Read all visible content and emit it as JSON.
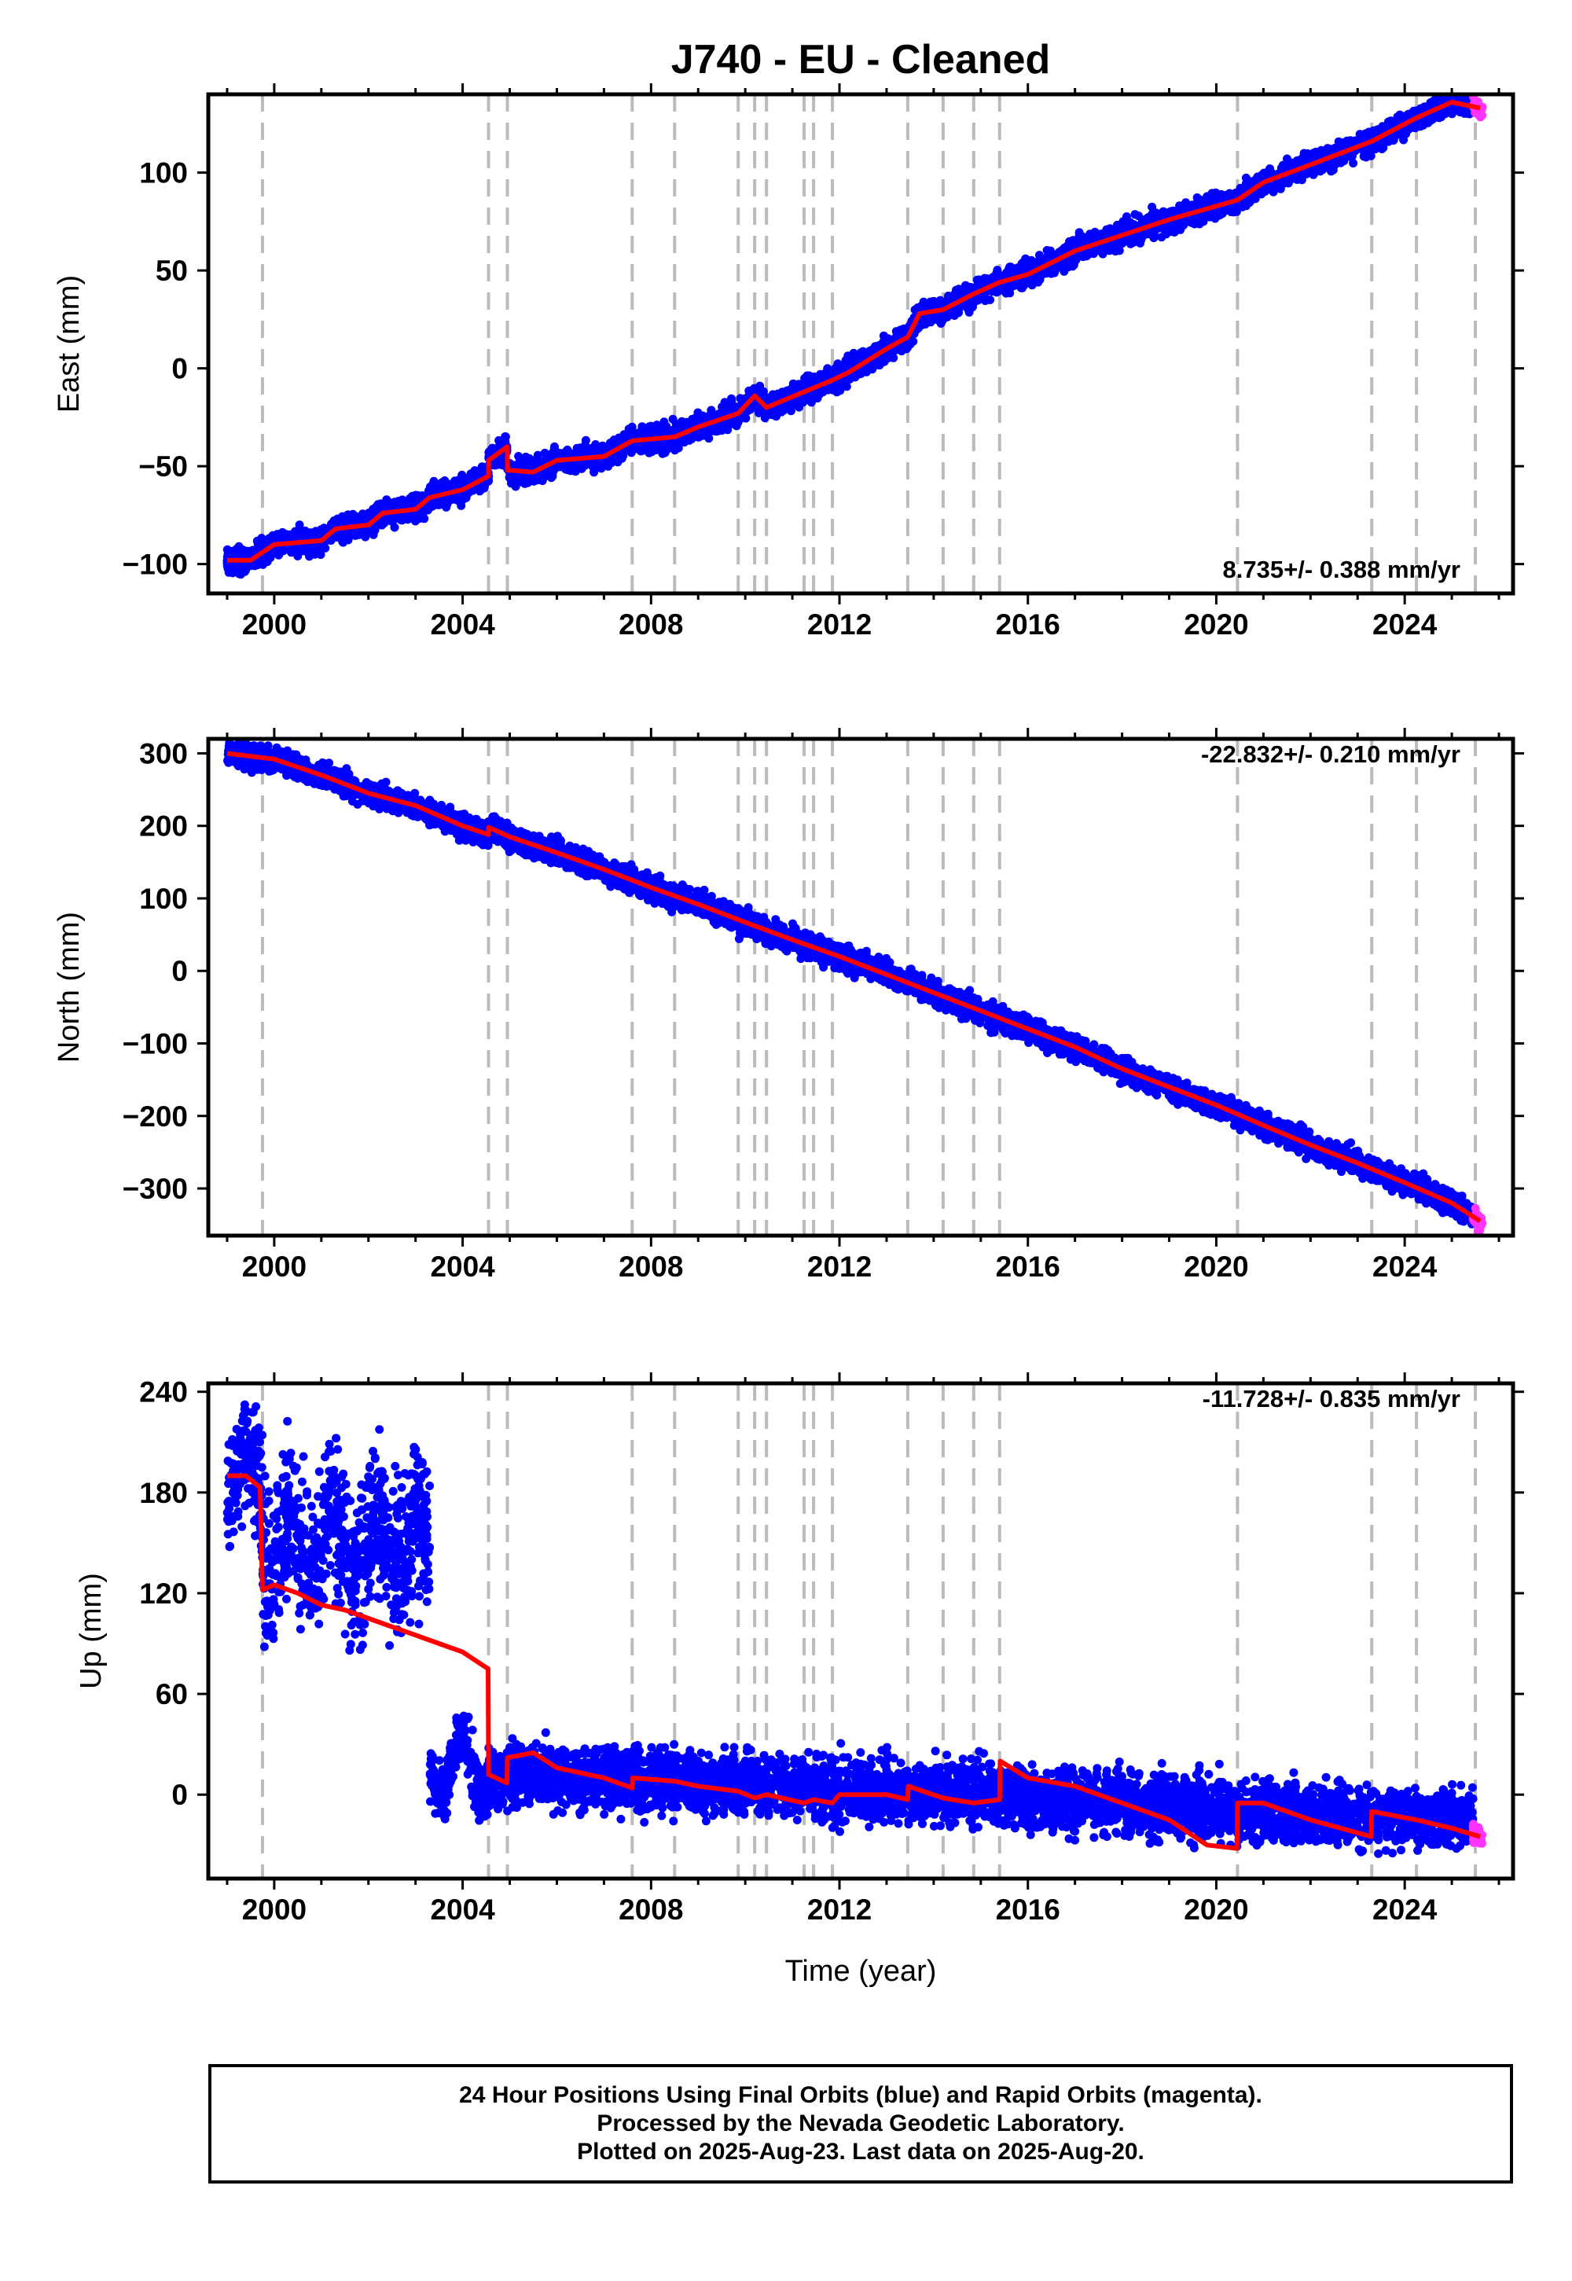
{
  "title": "J740  - EU - Cleaned",
  "xlabel": "Time (year)",
  "x_ticks": [
    "2000",
    "2004",
    "2008",
    "2012",
    "2016",
    "2020",
    "2024"
  ],
  "colors": {
    "final": "#0000ff",
    "rapid": "#ff33ff",
    "model": "#ff0000",
    "steps": "#bbbbbb"
  },
  "chart_data": [
    {
      "type": "scatter",
      "component": "east",
      "ylabel": "East (mm)",
      "xlim": [
        1998.6,
        2026.3
      ],
      "ylim": [
        -115,
        140
      ],
      "y_ticks": [
        -100,
        -50,
        0,
        50,
        100
      ],
      "rate_label": "8.735+/- 0.388 mm/yr",
      "step_epochs": [
        1999.75,
        2004.55,
        2004.95,
        2007.6,
        2008.5,
        2009.85,
        2010.2,
        2010.45,
        2011.25,
        2011.45,
        2011.85,
        2013.45,
        2014.2,
        2014.85,
        2015.4,
        2020.45,
        2023.3,
        2024.25,
        2025.5
      ],
      "model": [
        [
          1999.0,
          -98
        ],
        [
          1999.5,
          -98
        ],
        [
          2000.0,
          -90
        ],
        [
          2001.0,
          -88
        ],
        [
          2001.3,
          -82
        ],
        [
          2002.0,
          -80
        ],
        [
          2002.3,
          -74
        ],
        [
          2003.0,
          -72
        ],
        [
          2003.3,
          -66
        ],
        [
          2004.0,
          -62
        ],
        [
          2004.55,
          -55
        ],
        [
          2004.551,
          -47
        ],
        [
          2004.95,
          -40
        ],
        [
          2004.951,
          -52
        ],
        [
          2005.5,
          -53
        ],
        [
          2006.0,
          -47
        ],
        [
          2007.0,
          -45
        ],
        [
          2007.6,
          -37
        ],
        [
          2008.5,
          -35
        ],
        [
          2009.0,
          -30
        ],
        [
          2009.85,
          -23
        ],
        [
          2010.2,
          -14
        ],
        [
          2010.45,
          -20
        ],
        [
          2011.25,
          -12
        ],
        [
          2011.45,
          -10
        ],
        [
          2011.85,
          -6
        ],
        [
          2012.2,
          -2
        ],
        [
          2013.0,
          10
        ],
        [
          2013.45,
          16
        ],
        [
          2013.7,
          28
        ],
        [
          2014.2,
          30
        ],
        [
          2014.85,
          38
        ],
        [
          2015.4,
          44
        ],
        [
          2016.0,
          48
        ],
        [
          2017.0,
          60
        ],
        [
          2018.0,
          68
        ],
        [
          2019.0,
          76
        ],
        [
          2020.45,
          86
        ],
        [
          2021.0,
          95
        ],
        [
          2022.0,
          104
        ],
        [
          2023.3,
          116
        ],
        [
          2024.25,
          128
        ],
        [
          2025.0,
          136
        ],
        [
          2025.6,
          133
        ]
      ],
      "final_range": [
        1999.0,
        2025.45
      ],
      "rapid_range": [
        2025.45,
        2025.65
      ]
    },
    {
      "type": "scatter",
      "component": "north",
      "ylabel": "North (mm)",
      "xlim": [
        1998.6,
        2026.3
      ],
      "ylim": [
        -365,
        320
      ],
      "y_ticks": [
        -300,
        -200,
        -100,
        0,
        100,
        200,
        300
      ],
      "rate_label": "-22.832+/- 0.210 mm/yr",
      "step_epochs": [
        1999.75,
        2004.55,
        2004.95,
        2007.6,
        2008.5,
        2009.85,
        2010.2,
        2010.45,
        2011.25,
        2011.45,
        2011.85,
        2013.45,
        2014.2,
        2014.85,
        2015.4,
        2020.45,
        2023.3,
        2024.25,
        2025.5
      ],
      "model": [
        [
          1999.0,
          300
        ],
        [
          2000.0,
          292
        ],
        [
          2001.0,
          270
        ],
        [
          2002.0,
          245
        ],
        [
          2003.0,
          228
        ],
        [
          2004.0,
          200
        ],
        [
          2004.55,
          188
        ],
        [
          2004.551,
          198
        ],
        [
          2005.0,
          185
        ],
        [
          2006.0,
          163
        ],
        [
          2007.0,
          140
        ],
        [
          2008.0,
          115
        ],
        [
          2009.0,
          92
        ],
        [
          2010.0,
          67
        ],
        [
          2011.0,
          43
        ],
        [
          2012.0,
          20
        ],
        [
          2013.0,
          -5
        ],
        [
          2014.0,
          -30
        ],
        [
          2015.0,
          -55
        ],
        [
          2016.0,
          -80
        ],
        [
          2017.0,
          -105
        ],
        [
          2018.0,
          -135
        ],
        [
          2019.0,
          -160
        ],
        [
          2020.0,
          -185
        ],
        [
          2021.0,
          -213
        ],
        [
          2022.0,
          -240
        ],
        [
          2023.0,
          -265
        ],
        [
          2024.0,
          -292
        ],
        [
          2025.0,
          -320
        ],
        [
          2025.6,
          -345
        ]
      ],
      "final_range": [
        1999.0,
        2025.45
      ],
      "rapid_range": [
        2025.45,
        2025.65
      ]
    },
    {
      "type": "scatter",
      "component": "up",
      "ylabel": "Up (mm)",
      "xlim": [
        1998.6,
        2026.3
      ],
      "ylim": [
        -50,
        245
      ],
      "y_ticks": [
        0,
        60,
        120,
        180,
        240
      ],
      "rate_label": "-11.728+/- 0.835 mm/yr",
      "step_epochs": [
        1999.75,
        2004.55,
        2004.95,
        2007.6,
        2008.5,
        2009.85,
        2010.2,
        2010.45,
        2011.25,
        2011.45,
        2011.85,
        2013.45,
        2014.2,
        2014.85,
        2015.4,
        2020.45,
        2023.3,
        2024.25,
        2025.5
      ],
      "model": [
        [
          1999.0,
          190
        ],
        [
          1999.4,
          190
        ],
        [
          1999.7,
          183
        ],
        [
          1999.75,
          122
        ],
        [
          2000.0,
          125
        ],
        [
          2000.5,
          120
        ],
        [
          2001.0,
          113
        ],
        [
          2001.5,
          110
        ],
        [
          2002.0,
          105
        ],
        [
          2002.5,
          100
        ],
        [
          2003.0,
          95
        ],
        [
          2003.5,
          90
        ],
        [
          2004.0,
          85
        ],
        [
          2004.54,
          75
        ],
        [
          2004.55,
          12
        ],
        [
          2004.94,
          7
        ],
        [
          2004.95,
          22
        ],
        [
          2005.5,
          25
        ],
        [
          2006.0,
          16
        ],
        [
          2007.0,
          10
        ],
        [
          2007.6,
          4
        ],
        [
          2007.61,
          10
        ],
        [
          2008.5,
          8
        ],
        [
          2009.0,
          5
        ],
        [
          2009.85,
          2
        ],
        [
          2010.2,
          -2
        ],
        [
          2010.45,
          0
        ],
        [
          2011.25,
          -5
        ],
        [
          2011.45,
          -3
        ],
        [
          2011.85,
          -5
        ],
        [
          2012.0,
          0
        ],
        [
          2013.0,
          0
        ],
        [
          2013.45,
          -3
        ],
        [
          2013.46,
          5
        ],
        [
          2014.2,
          -2
        ],
        [
          2014.85,
          -5
        ],
        [
          2015.4,
          -3
        ],
        [
          2015.41,
          20
        ],
        [
          2016.0,
          10
        ],
        [
          2017.0,
          5
        ],
        [
          2018.0,
          -5
        ],
        [
          2019.0,
          -15
        ],
        [
          2019.8,
          -30
        ],
        [
          2020.44,
          -32
        ],
        [
          2020.45,
          -5
        ],
        [
          2021.0,
          -5
        ],
        [
          2022.0,
          -15
        ],
        [
          2023.29,
          -25
        ],
        [
          2023.3,
          -10
        ],
        [
          2024.25,
          -15
        ],
        [
          2025.0,
          -20
        ],
        [
          2025.6,
          -25
        ]
      ],
      "final_blocks": [
        {
          "range": [
            1999.0,
            1999.75
          ],
          "center": 190,
          "spread": 18
        },
        {
          "range": [
            1999.75,
            2003.3
          ],
          "center": 150,
          "spread": 22
        },
        {
          "range": [
            2003.3,
            2004.55
          ],
          "center": 18,
          "spread": 8
        },
        {
          "range": [
            2004.55,
            2025.45
          ],
          "trend": [
            [
              2004.55,
              12
            ],
            [
              2015.4,
              0
            ],
            [
              2020.45,
              -10
            ],
            [
              2025.45,
              -15
            ]
          ],
          "spread": 9
        }
      ],
      "rapid_range": [
        2025.45,
        2025.65
      ]
    }
  ],
  "footer": {
    "line1": "24 Hour Positions Using Final Orbits (blue) and Rapid Orbits (magenta).",
    "line2": "Processed by the Nevada Geodetic Laboratory.",
    "line3": "Plotted on 2025-Aug-23. Last data on 2025-Aug-20."
  }
}
